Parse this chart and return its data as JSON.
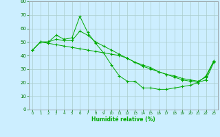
{
  "xlabel": "Humidité relative (%)",
  "background_color": "#cceeff",
  "grid_color": "#aacccc",
  "line_color": "#00aa00",
  "xlim": [
    -0.5,
    23.5
  ],
  "ylim": [
    0,
    80
  ],
  "yticks": [
    0,
    10,
    20,
    30,
    40,
    50,
    60,
    70,
    80
  ],
  "xticks": [
    0,
    1,
    2,
    3,
    4,
    5,
    6,
    7,
    8,
    9,
    10,
    11,
    12,
    13,
    14,
    15,
    16,
    17,
    18,
    19,
    20,
    21,
    22,
    23
  ],
  "series1_x": [
    0,
    1,
    2,
    3,
    4,
    5,
    6,
    7,
    8,
    9,
    10,
    11,
    12,
    13,
    14,
    15,
    16,
    17,
    18,
    19,
    20,
    21,
    22,
    23
  ],
  "series1_y": [
    44,
    50,
    50,
    55,
    52,
    53,
    69,
    57,
    49,
    42,
    33,
    25,
    21,
    21,
    16,
    16,
    15,
    15,
    16,
    17,
    18,
    20,
    25,
    36
  ],
  "series2_x": [
    0,
    1,
    2,
    3,
    4,
    5,
    6,
    7,
    8,
    9,
    10,
    11,
    12,
    13,
    14,
    15,
    16,
    17,
    18,
    19,
    20,
    21,
    22,
    23
  ],
  "series2_y": [
    44,
    50,
    50,
    52,
    51,
    51,
    58,
    55,
    50,
    47,
    44,
    41,
    38,
    35,
    33,
    31,
    28,
    26,
    25,
    23,
    22,
    21,
    24,
    36
  ],
  "series3_x": [
    0,
    1,
    2,
    3,
    4,
    5,
    6,
    7,
    8,
    9,
    10,
    11,
    12,
    13,
    14,
    15,
    16,
    17,
    18,
    19,
    20,
    21,
    22,
    23
  ],
  "series3_y": [
    44,
    50,
    49,
    48,
    47,
    46,
    45,
    44,
    43,
    42,
    41,
    40,
    38,
    35,
    32,
    30,
    28,
    26,
    24,
    22,
    21,
    20,
    22,
    35
  ]
}
